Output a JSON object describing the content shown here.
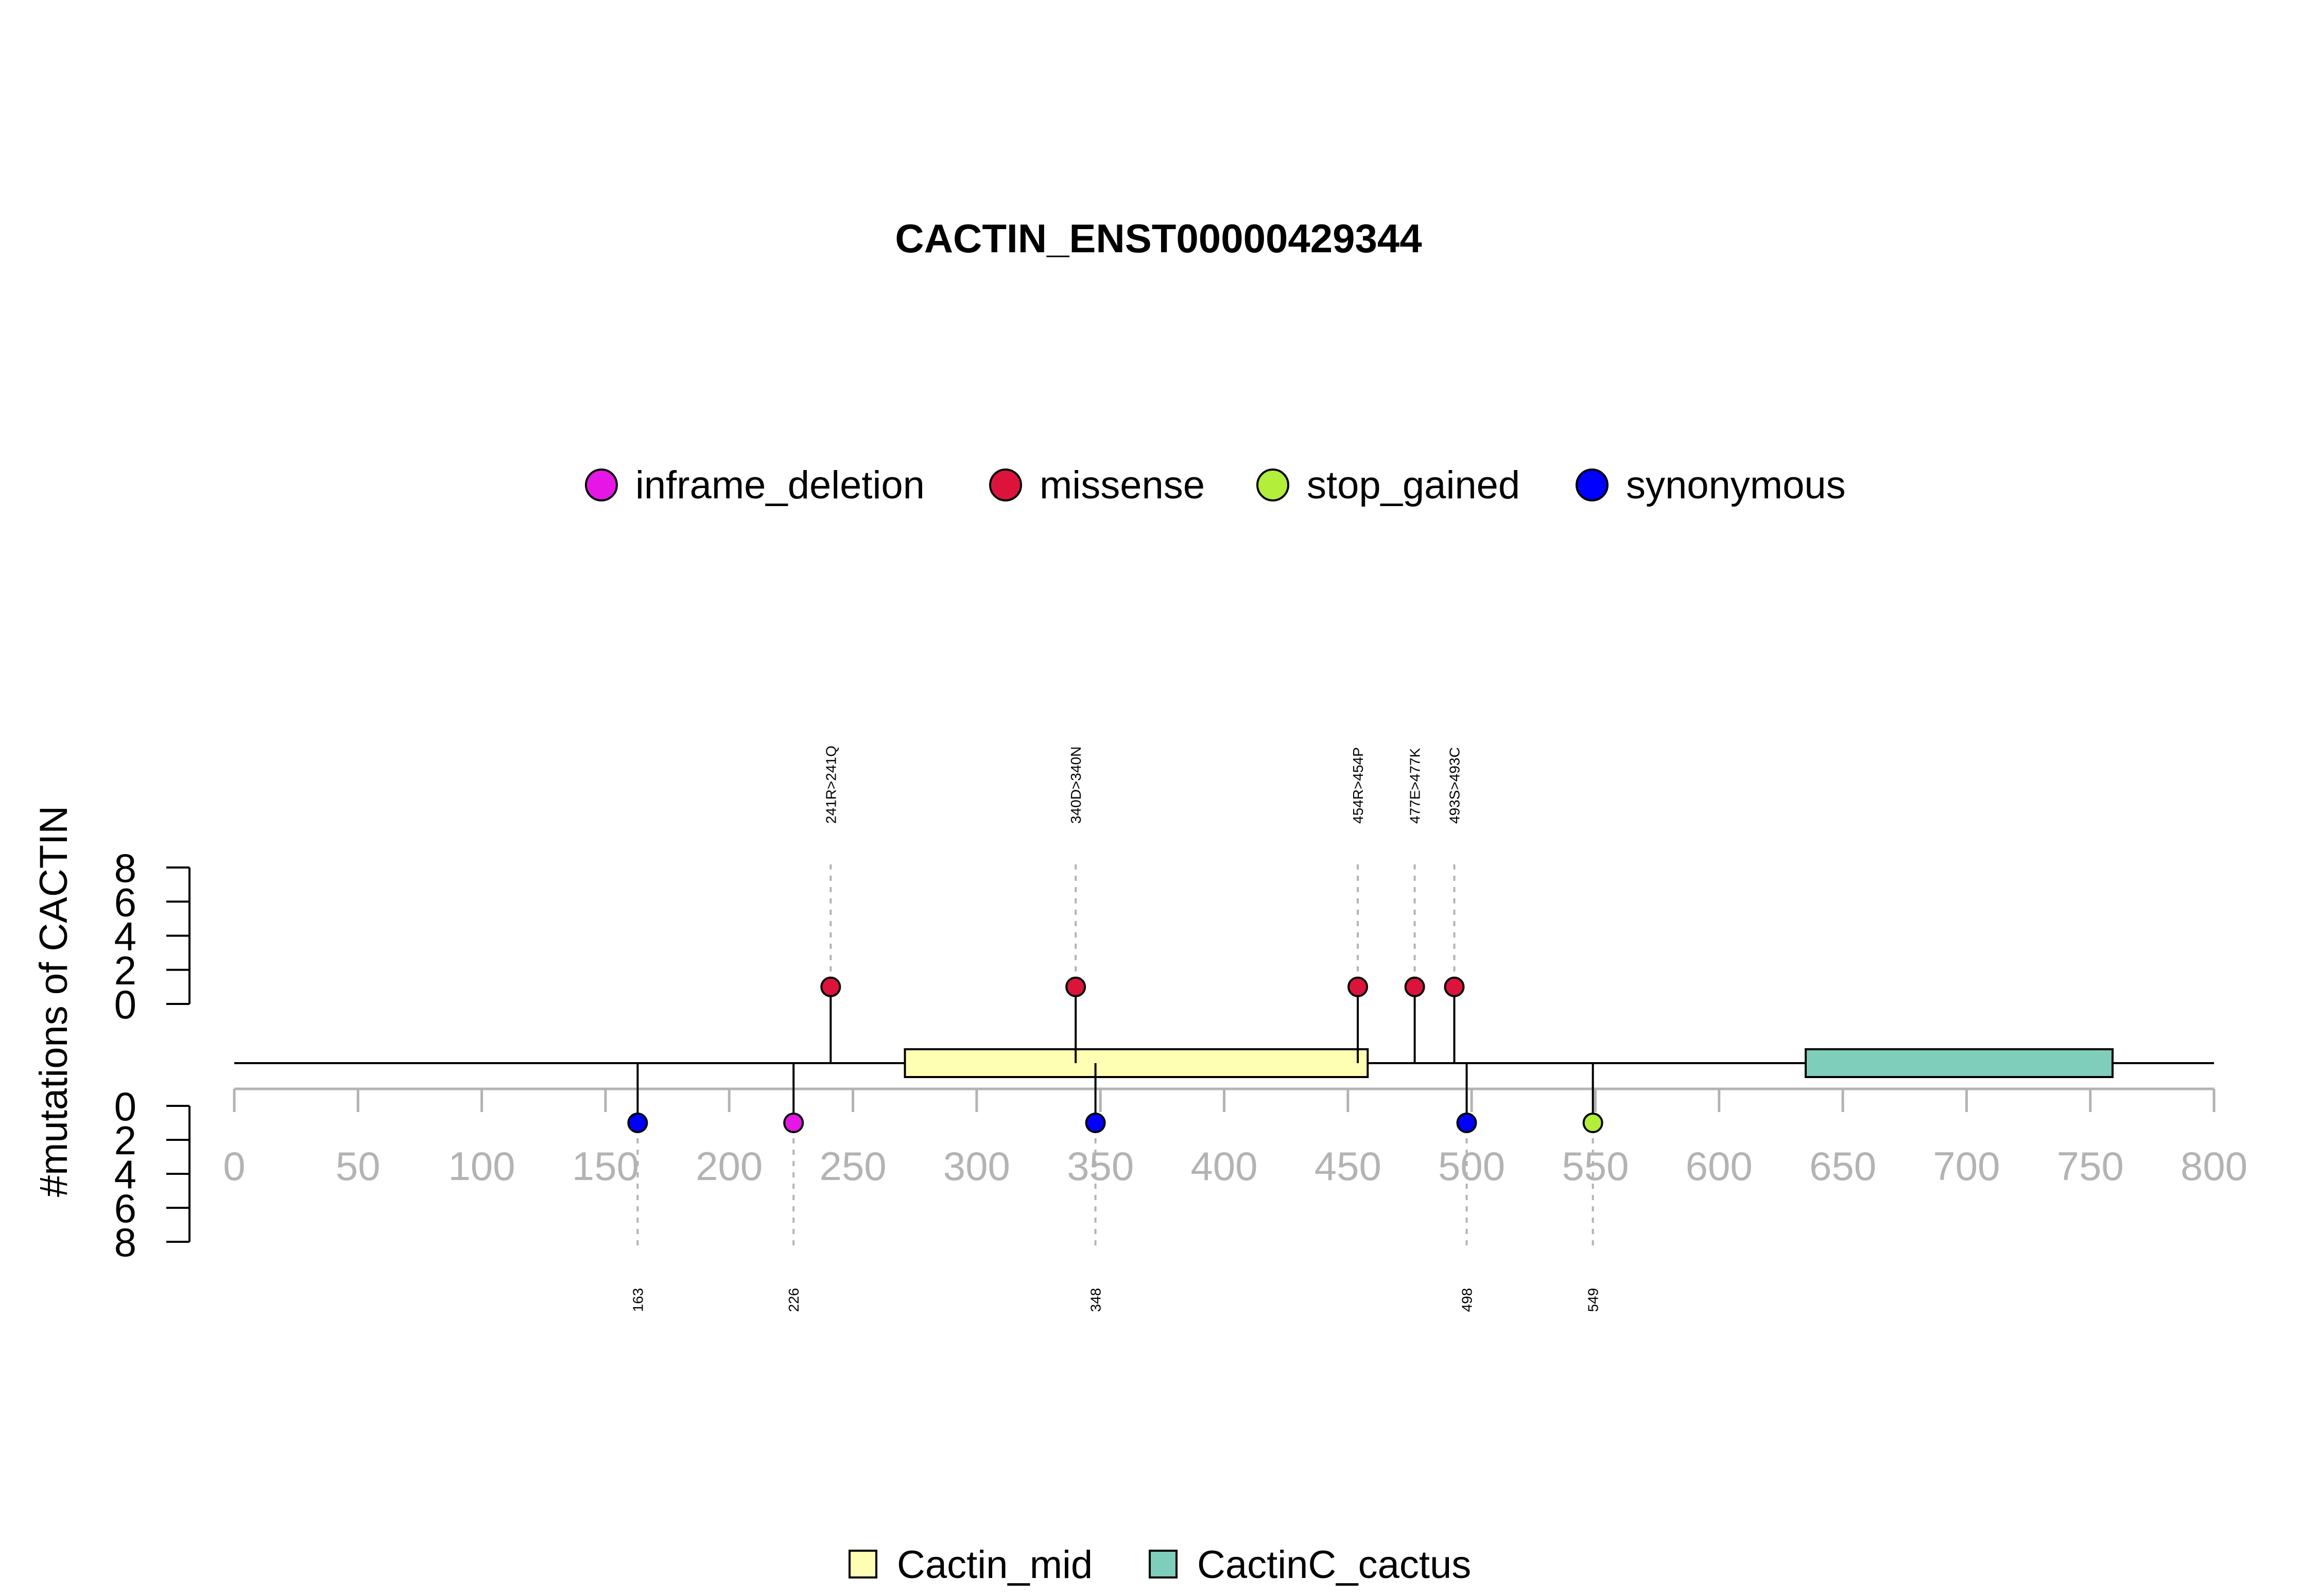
{
  "chart_data": {
    "type": "lollipop",
    "title": "CACTIN_ENST00000429344",
    "ylabel": "#mutations of CACTIN",
    "xlim": [
      0,
      800
    ],
    "x_ticks": [
      0,
      50,
      100,
      150,
      200,
      250,
      300,
      350,
      400,
      450,
      500,
      550,
      600,
      650,
      700,
      750,
      800
    ],
    "y_ticks": [
      0,
      2,
      4,
      6,
      8
    ],
    "ylim": [
      0,
      8
    ],
    "protein_length": 800,
    "mutation_legend": [
      {
        "name": "inframe_deletion",
        "color": "#E617E6"
      },
      {
        "name": "missense",
        "color": "#DC143C"
      },
      {
        "name": "stop_gained",
        "color": "#B3EE3A"
      },
      {
        "name": "synonymous",
        "color": "#0000FF"
      }
    ],
    "domain_legend": [
      {
        "name": "Cactin_mid",
        "color": "#FFFFB3"
      },
      {
        "name": "CactinC_cactus",
        "color": "#7FCDBB"
      }
    ],
    "domains": [
      {
        "name": "Cactin_mid",
        "start": 271,
        "end": 458,
        "color": "#FFFFB3"
      },
      {
        "name": "CactinC_cactus",
        "start": 635,
        "end": 759,
        "color": "#7FCDBB"
      }
    ],
    "top_mutations": [
      {
        "pos": 241,
        "count": 1,
        "type": "missense",
        "label": "241R>241Q"
      },
      {
        "pos": 340,
        "count": 1,
        "type": "missense",
        "label": "340D>340N"
      },
      {
        "pos": 454,
        "count": 1,
        "type": "missense",
        "label": "454R>454P"
      },
      {
        "pos": 477,
        "count": 1,
        "type": "missense",
        "label": "477E>477K"
      },
      {
        "pos": 493,
        "count": 1,
        "type": "missense",
        "label": "493S>493C"
      }
    ],
    "bottom_mutations": [
      {
        "pos": 163,
        "count": 1,
        "type": "synonymous",
        "label": "163"
      },
      {
        "pos": 226,
        "count": 1,
        "type": "inframe_deletion",
        "label": "226"
      },
      {
        "pos": 348,
        "count": 1,
        "type": "synonymous",
        "label": "348"
      },
      {
        "pos": 498,
        "count": 1,
        "type": "synonymous",
        "label": "498"
      },
      {
        "pos": 549,
        "count": 1,
        "type": "stop_gained",
        "label": "549"
      }
    ]
  }
}
